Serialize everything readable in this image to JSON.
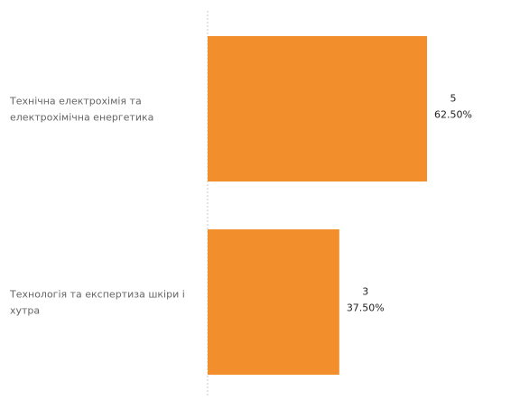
{
  "chart_data": {
    "type": "bar",
    "orientation": "horizontal",
    "categories": [
      "Технічна електрохімія та електрохімічна енергетика",
      "Технологія та експертиза шкіри і хутра"
    ],
    "category_lines": [
      [
        "Технічна електрохімія та",
        "електрохімічна енергетика"
      ],
      [
        "Технологія та експертиза шкіри і",
        "хутра"
      ]
    ],
    "values": [
      5,
      3
    ],
    "value_labels": [
      "5",
      "3"
    ],
    "percent_labels": [
      "62.50%",
      "37.50%"
    ],
    "xlim": [
      0,
      8
    ],
    "grid": false,
    "legend": "none",
    "bar_color": "#f28e2b",
    "baseline_color": "#c8c8c8"
  }
}
